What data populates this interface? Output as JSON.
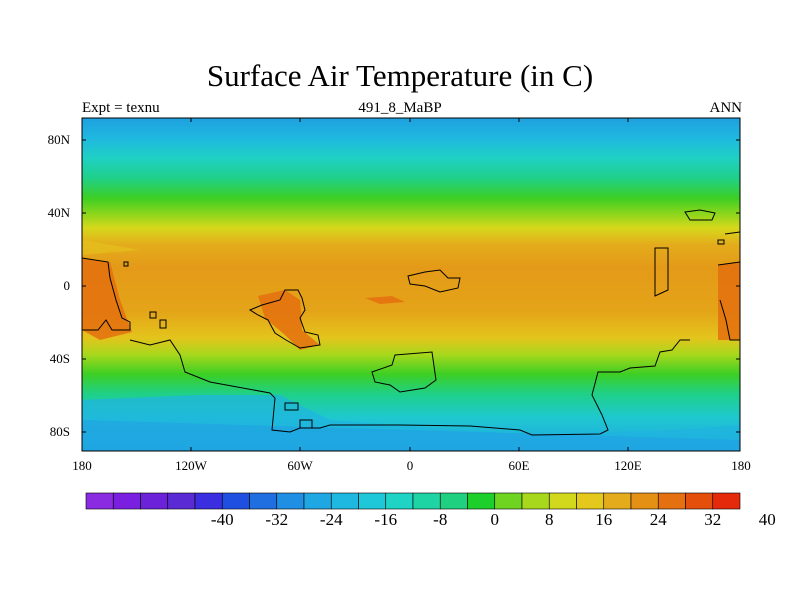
{
  "title": "Surface Air Temperature (in C)",
  "left_string": "Expt = texnu",
  "center_string": "491_8_MaBP",
  "right_string": "ANN",
  "lat_ticks": [
    "80N",
    "40N",
    "0",
    "40S",
    "80S"
  ],
  "lon_ticks": [
    "180",
    "120W",
    "60W",
    "0",
    "60E",
    "120E",
    "180"
  ],
  "colorbar": {
    "colors": [
      "#8a2be2",
      "#7a1fe0",
      "#6b22d8",
      "#5a2ad4",
      "#3a2ee0",
      "#1f4fe0",
      "#1f6fe0",
      "#1f8fe3",
      "#1fa7e3",
      "#1fb8e0",
      "#1fc8d8",
      "#1fd4c4",
      "#1fd4a4",
      "#1fd080",
      "#1ccf2a",
      "#6fd420",
      "#a8d81c",
      "#d2d81c",
      "#e4c81c",
      "#e4ac1c",
      "#e49014",
      "#e47010",
      "#e4500c",
      "#e42a0a"
    ],
    "labels": [
      "-40",
      "-32",
      "-24",
      "-16",
      "-8",
      "0",
      "8",
      "16",
      "24",
      "32",
      "40"
    ]
  }
}
